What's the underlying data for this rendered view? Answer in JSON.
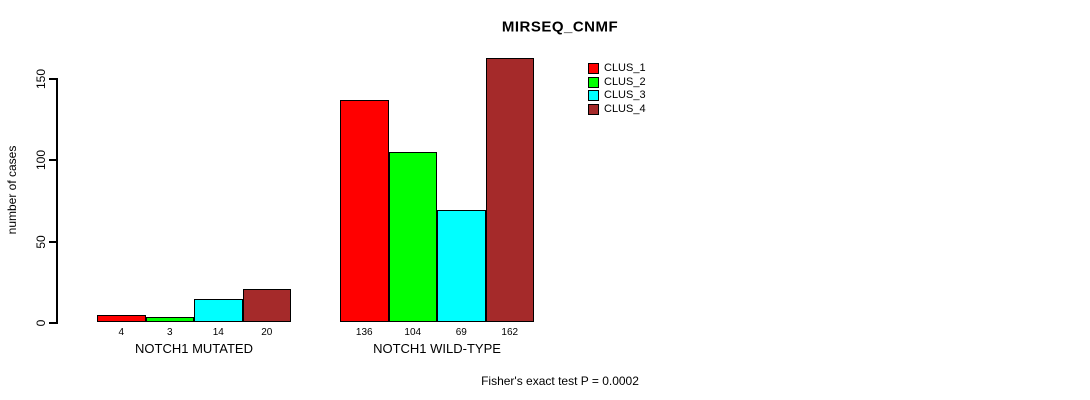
{
  "chart_data": {
    "type": "bar",
    "title": "MIRSEQ_CNMF",
    "ylabel": "number of cases",
    "xlabel": "",
    "categories": [
      "NOTCH1 MUTATED",
      "NOTCH1 WILD-TYPE"
    ],
    "series": [
      {
        "name": "CLUS_1",
        "color": "#ff0000",
        "values": [
          4,
          136
        ]
      },
      {
        "name": "CLUS_2",
        "color": "#00ff00",
        "values": [
          3,
          104
        ]
      },
      {
        "name": "CLUS_3",
        "color": "#00ffff",
        "values": [
          14,
          69
        ]
      },
      {
        "name": "CLUS_4",
        "color": "#a52a2a",
        "values": [
          20,
          162
        ]
      }
    ],
    "yticks": [
      0,
      50,
      100,
      150
    ],
    "ylim": [
      0,
      165
    ],
    "grid": false,
    "legend_position": "top-right-inside",
    "bar_value_labels": [
      [
        4,
        3,
        14,
        20
      ],
      [
        136,
        104,
        69,
        162
      ]
    ],
    "annotation": "Fisher's exact test P = 0.0002"
  }
}
